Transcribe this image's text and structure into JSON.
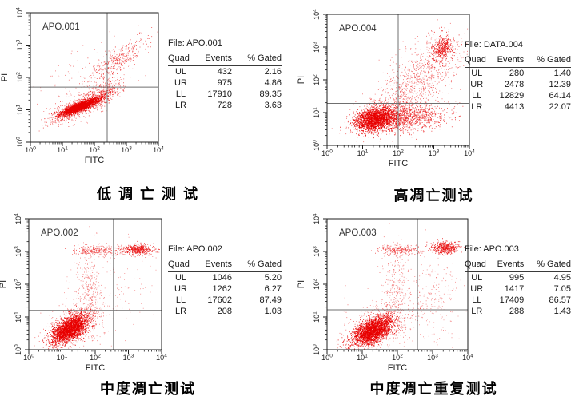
{
  "page": {
    "background": "#ffffff"
  },
  "colors": {
    "dot": "#e80000",
    "axis": "#1c1c1c",
    "quadrant_line": "#6f6f6f",
    "plot_label_text": "#333333",
    "table_text": "#1a1a1a"
  },
  "file_prefix": "File:",
  "table_headers": [
    "Quad",
    "Events",
    "% Gated"
  ],
  "quad_row_labels": [
    "UL",
    "UR",
    "LL",
    "LR"
  ],
  "chart_data": [
    {
      "type": "scatter",
      "plot_label": "APO.001",
      "file": "APO.001",
      "caption": "低 调 亡 测 试",
      "xlabel": "FITC",
      "ylabel": "PI",
      "x_scale": "log",
      "y_scale": "log",
      "xlim_log": [
        0,
        4
      ],
      "ylim_log": [
        0,
        4
      ],
      "tick_exponents": [
        0,
        1,
        2,
        3,
        4
      ],
      "quadrant": {
        "x_log": 2.4,
        "y_log": 1.7
      },
      "stats_rows": [
        {
          "quad": "UL",
          "events": "432",
          "gated": "2.16"
        },
        {
          "quad": "UR",
          "events": "975",
          "gated": "4.86"
        },
        {
          "quad": "LL",
          "events": "17910",
          "gated": "89.35"
        },
        {
          "quad": "LR",
          "events": "728",
          "gated": "3.63"
        }
      ],
      "clusters": [
        {
          "cx": 1.55,
          "cy": 1.1,
          "sx": 0.3,
          "sy": 0.13,
          "corr": 0.85,
          "n": 2200,
          "op": 1
        },
        {
          "cx": 1.55,
          "cy": 1.1,
          "sx": 0.46,
          "sy": 0.25,
          "corr": 0.75,
          "n": 800,
          "op": 0.7
        },
        {
          "cx": 2.35,
          "cy": 1.55,
          "sx": 0.25,
          "sy": 0.18,
          "corr": 0.4,
          "n": 250,
          "op": 0.75
        },
        {
          "cx": 2.75,
          "cy": 2.55,
          "sx": 0.48,
          "sy": 0.33,
          "corr": 0.8,
          "n": 380,
          "op": 0.7
        },
        {
          "cx": 2.0,
          "cy": 1.9,
          "sx": 0.8,
          "sy": 0.6,
          "corr": 0.5,
          "n": 160,
          "op": 0.55
        }
      ]
    },
    {
      "type": "scatter",
      "plot_label": "APO.004",
      "file": "DATA.004",
      "caption": "高凋亡测试",
      "xlabel": "FITC",
      "ylabel": "PI",
      "x_scale": "log",
      "y_scale": "log",
      "xlim_log": [
        0,
        4
      ],
      "ylim_log": [
        0,
        4
      ],
      "tick_exponents": [
        0,
        1,
        2,
        3,
        4
      ],
      "quadrant": {
        "x_log": 2.0,
        "y_log": 1.28
      },
      "stats_rows": [
        {
          "quad": "UL",
          "events": "280",
          "gated": "1.40"
        },
        {
          "quad": "UR",
          "events": "2478",
          "gated": "12.39"
        },
        {
          "quad": "LL",
          "events": "12829",
          "gated": "64.14"
        },
        {
          "quad": "LR",
          "events": "4413",
          "gated": "22.07"
        }
      ],
      "clusters": [
        {
          "cx": 1.35,
          "cy": 0.8,
          "sx": 0.28,
          "sy": 0.18,
          "corr": 0.25,
          "n": 2000,
          "op": 1
        },
        {
          "cx": 2.25,
          "cy": 0.85,
          "sx": 0.55,
          "sy": 0.2,
          "corr": 0.1,
          "n": 1000,
          "op": 0.8
        },
        {
          "cx": 1.6,
          "cy": 0.9,
          "sx": 0.5,
          "sy": 0.3,
          "corr": 0.3,
          "n": 500,
          "op": 0.65
        },
        {
          "cx": 3.25,
          "cy": 2.95,
          "sx": 0.16,
          "sy": 0.2,
          "corr": 0.3,
          "n": 450,
          "op": 0.9
        },
        {
          "cx": 2.75,
          "cy": 2.2,
          "sx": 0.5,
          "sy": 0.55,
          "corr": 0.4,
          "n": 650,
          "op": 0.6
        },
        {
          "cx": 2.1,
          "cy": 1.55,
          "sx": 0.35,
          "sy": 0.35,
          "corr": 0.2,
          "n": 250,
          "op": 0.55
        }
      ]
    },
    {
      "type": "scatter",
      "plot_label": "APO.002",
      "file": "APO.002",
      "caption": "中度凋亡测试",
      "xlabel": "FITC",
      "ylabel": "PI",
      "x_scale": "log",
      "y_scale": "log",
      "xlim_log": [
        0,
        4
      ],
      "ylim_log": [
        0,
        4
      ],
      "tick_exponents": [
        0,
        1,
        2,
        3,
        4
      ],
      "quadrant": {
        "x_log": 2.55,
        "y_log": 1.2
      },
      "stats_rows": [
        {
          "quad": "UL",
          "events": "1046",
          "gated": "5.20"
        },
        {
          "quad": "UR",
          "events": "1262",
          "gated": "6.27"
        },
        {
          "quad": "LL",
          "events": "17602",
          "gated": "87.49"
        },
        {
          "quad": "LR",
          "events": "208",
          "gated": "1.03"
        }
      ],
      "clusters": [
        {
          "cx": 1.22,
          "cy": 0.62,
          "sx": 0.26,
          "sy": 0.22,
          "corr": 0.55,
          "n": 2300,
          "op": 1
        },
        {
          "cx": 1.35,
          "cy": 0.75,
          "sx": 0.42,
          "sy": 0.35,
          "corr": 0.5,
          "n": 600,
          "op": 0.6
        },
        {
          "cx": 2.0,
          "cy": 3.02,
          "sx": 0.28,
          "sy": 0.07,
          "corr": 0,
          "n": 220,
          "op": 0.7
        },
        {
          "cx": 3.3,
          "cy": 3.06,
          "sx": 0.22,
          "sy": 0.08,
          "corr": 0,
          "n": 380,
          "op": 0.9
        },
        {
          "cx": 2.7,
          "cy": 3.0,
          "sx": 0.5,
          "sy": 0.1,
          "corr": 0,
          "n": 120,
          "op": 0.5
        },
        {
          "cx": 1.8,
          "cy": 1.9,
          "sx": 0.16,
          "sy": 0.65,
          "corr": 0,
          "n": 230,
          "op": 0.55
        },
        {
          "cx": 2.4,
          "cy": 1.7,
          "sx": 0.75,
          "sy": 0.8,
          "corr": 0.2,
          "n": 150,
          "op": 0.45
        }
      ]
    },
    {
      "type": "scatter",
      "plot_label": "APO.003",
      "file": "APO.003",
      "caption": "中度凋亡重复测试",
      "xlabel": "FITC",
      "ylabel": "PI",
      "x_scale": "log",
      "y_scale": "log",
      "xlim_log": [
        0,
        4
      ],
      "ylim_log": [
        0,
        4
      ],
      "tick_exponents": [
        0,
        1,
        2,
        3,
        4
      ],
      "quadrant": {
        "x_log": 2.57,
        "y_log": 1.22
      },
      "stats_rows": [
        {
          "quad": "UL",
          "events": "995",
          "gated": "4.95"
        },
        {
          "quad": "UR",
          "events": "1417",
          "gated": "7.05"
        },
        {
          "quad": "LL",
          "events": "17409",
          "gated": "86.57"
        },
        {
          "quad": "LR",
          "events": "288",
          "gated": "1.43"
        }
      ],
      "clusters": [
        {
          "cx": 1.3,
          "cy": 0.58,
          "sx": 0.28,
          "sy": 0.22,
          "corr": 0.5,
          "n": 2300,
          "op": 1
        },
        {
          "cx": 1.45,
          "cy": 0.72,
          "sx": 0.45,
          "sy": 0.35,
          "corr": 0.45,
          "n": 600,
          "op": 0.6
        },
        {
          "cx": 2.05,
          "cy": 3.05,
          "sx": 0.3,
          "sy": 0.08,
          "corr": 0,
          "n": 250,
          "op": 0.7
        },
        {
          "cx": 3.35,
          "cy": 3.1,
          "sx": 0.2,
          "sy": 0.1,
          "corr": 0,
          "n": 420,
          "op": 0.9
        },
        {
          "cx": 1.95,
          "cy": 1.95,
          "sx": 0.18,
          "sy": 0.65,
          "corr": 0,
          "n": 240,
          "op": 0.55
        },
        {
          "cx": 2.55,
          "cy": 1.6,
          "sx": 0.7,
          "sy": 0.75,
          "corr": 0.2,
          "n": 170,
          "op": 0.45
        },
        {
          "cx": 3.1,
          "cy": 1.5,
          "sx": 0.3,
          "sy": 0.6,
          "corr": 0,
          "n": 120,
          "op": 0.5
        }
      ]
    }
  ]
}
